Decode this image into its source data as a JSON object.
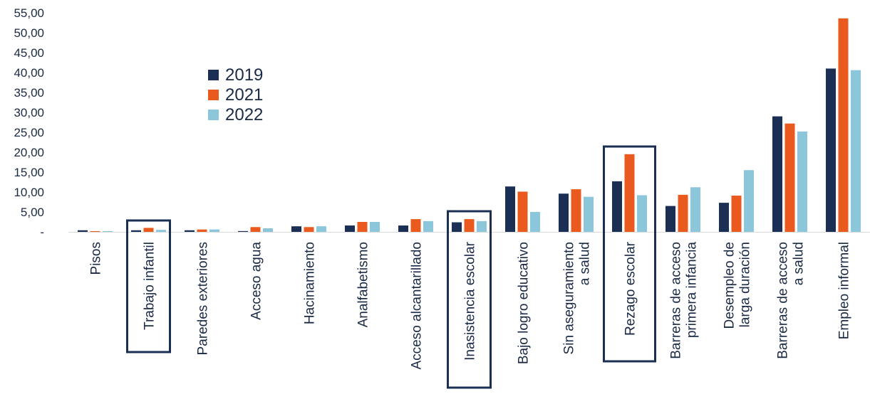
{
  "chart_data": {
    "type": "bar",
    "categories": [
      [
        "Pisos"
      ],
      [
        "Trabajo infantil"
      ],
      [
        "Paredes exteriores"
      ],
      [
        "Acceso agua"
      ],
      [
        "Hacinamiento"
      ],
      [
        "Analfabetismo"
      ],
      [
        "Acceso alcantarillado"
      ],
      [
        "Inasistencia escolar"
      ],
      [
        "Bajo logro educativo"
      ],
      [
        "Sin aseguramiento",
        "a salud"
      ],
      [
        "Rezago escolar"
      ],
      [
        "Barreras de acceso",
        "primera infancia"
      ],
      [
        "Desempleo de",
        "larga duración"
      ],
      [
        "Barreras de acceso",
        "a salud"
      ],
      [
        "Empleo informal"
      ]
    ],
    "highlighted_categories": [
      "Trabajo infantil",
      "Inasistencia escolar",
      "Rezago escolar"
    ],
    "series": [
      {
        "name": "2019",
        "color": "#1b2f55",
        "values": [
          0.4,
          0.4,
          0.4,
          0.2,
          1.4,
          1.6,
          1.6,
          2.4,
          11.4,
          9.6,
          12.7,
          6.5,
          7.3,
          29.0,
          41.0
        ]
      },
      {
        "name": "2021",
        "color": "#ea5a1e",
        "values": [
          0.1,
          1.0,
          0.6,
          1.2,
          1.2,
          2.5,
          3.2,
          3.2,
          10.1,
          10.7,
          19.5,
          9.3,
          9.1,
          27.2,
          53.6
        ]
      },
      {
        "name": "2022",
        "color": "#8cc6da",
        "values": [
          0.1,
          0.5,
          0.6,
          0.9,
          1.4,
          2.5,
          2.7,
          2.7,
          5.0,
          8.8,
          9.2,
          11.2,
          15.5,
          25.2,
          40.6
        ]
      }
    ],
    "y_ticks": [
      "-",
      "5,00",
      "10,00",
      "15,00",
      "20,00",
      "25,00",
      "30,00",
      "35,00",
      "40,00",
      "45,00",
      "50,00",
      "55,00"
    ],
    "ylim": [
      0,
      55
    ],
    "grid": false,
    "legend_position": "upper-left-inside",
    "title": "",
    "xlabel": "",
    "ylabel": ""
  }
}
